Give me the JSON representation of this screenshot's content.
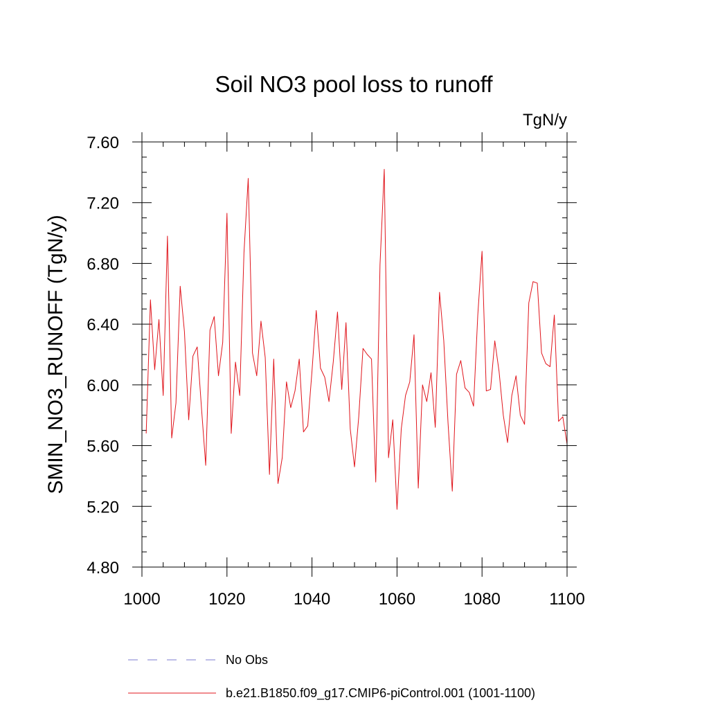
{
  "chart_data": {
    "type": "line",
    "title": "Soil NO3 pool loss to runoff",
    "units": "TgN/y",
    "ylabel": "SMIN_NO3_RUNOFF  (TgN/y)",
    "xlabel": "",
    "xlim": [
      1000,
      1100
    ],
    "ylim": [
      4.8,
      7.6
    ],
    "xticks": [
      1000,
      1020,
      1040,
      1060,
      1080,
      1100
    ],
    "yticks": [
      4.8,
      5.2,
      5.6,
      6.0,
      6.4,
      6.8,
      7.2,
      7.6
    ],
    "xtick_labels": [
      "1000",
      "1020",
      "1040",
      "1060",
      "1080",
      "1100"
    ],
    "ytick_labels": [
      "4.80",
      "5.20",
      "5.60",
      "6.00",
      "6.40",
      "6.80",
      "7.20",
      "7.60"
    ],
    "grid": false,
    "legend_position": "bottom",
    "legend": [
      {
        "label": "No Obs",
        "style": "dashed",
        "color": "#7b7bd0"
      },
      {
        "label": "b.e21.B1850.f09_g17.CMIP6-piControl.001 (1001-1100)",
        "style": "solid",
        "color": "#e0141b"
      }
    ],
    "series": [
      {
        "color": "#e0141b",
        "x": [
          1001,
          1002,
          1003,
          1004,
          1005,
          1006,
          1007,
          1008,
          1009,
          1010,
          1011,
          1012,
          1013,
          1014,
          1015,
          1016,
          1017,
          1018,
          1019,
          1020,
          1021,
          1022,
          1023,
          1024,
          1025,
          1026,
          1027,
          1028,
          1029,
          1030,
          1031,
          1032,
          1033,
          1034,
          1035,
          1036,
          1037,
          1038,
          1039,
          1040,
          1041,
          1042,
          1043,
          1044,
          1045,
          1046,
          1047,
          1048,
          1049,
          1050,
          1051,
          1052,
          1053,
          1054,
          1055,
          1056,
          1057,
          1058,
          1059,
          1060,
          1061,
          1062,
          1063,
          1064,
          1065,
          1066,
          1067,
          1068,
          1069,
          1070,
          1071,
          1072,
          1073,
          1074,
          1075,
          1076,
          1077,
          1078,
          1079,
          1080,
          1081,
          1082,
          1083,
          1084,
          1085,
          1086,
          1087,
          1088,
          1089,
          1090,
          1091,
          1092,
          1093,
          1094,
          1095,
          1096,
          1097,
          1098,
          1099,
          1100
        ],
        "values": [
          5.68,
          6.56,
          6.1,
          6.43,
          5.93,
          6.98,
          5.65,
          5.88,
          6.65,
          6.35,
          5.77,
          6.19,
          6.25,
          5.85,
          5.47,
          6.36,
          6.45,
          6.06,
          6.28,
          7.13,
          5.68,
          6.15,
          5.93,
          6.87,
          7.36,
          6.21,
          6.06,
          6.42,
          6.18,
          5.41,
          6.17,
          5.35,
          5.52,
          6.02,
          5.85,
          5.96,
          6.17,
          5.69,
          5.73,
          6.09,
          6.49,
          6.11,
          6.05,
          5.89,
          6.15,
          6.48,
          5.97,
          6.41,
          5.71,
          5.46,
          5.79,
          6.24,
          6.2,
          6.17,
          5.36,
          6.79,
          7.42,
          5.52,
          5.77,
          5.18,
          5.71,
          5.93,
          6.02,
          6.33,
          5.32,
          6.0,
          5.89,
          6.08,
          5.72,
          6.61,
          6.29,
          5.75,
          5.3,
          6.07,
          6.16,
          5.98,
          5.95,
          5.86,
          6.46,
          6.88,
          5.96,
          5.97,
          6.29,
          6.09,
          5.8,
          5.62,
          5.93,
          6.06,
          5.8,
          5.74,
          6.54,
          6.68,
          6.67,
          6.21,
          6.14,
          6.12,
          6.46,
          5.76,
          5.79,
          5.61
        ]
      }
    ]
  }
}
